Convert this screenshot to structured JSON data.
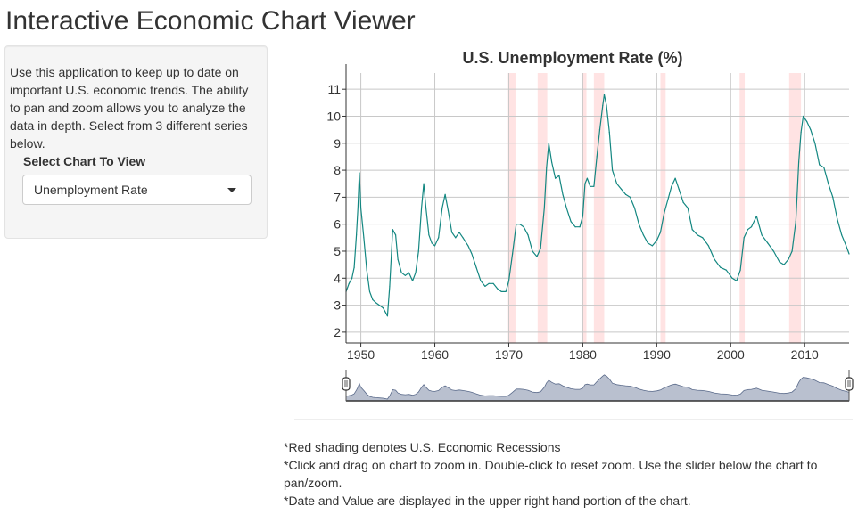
{
  "app": {
    "title": "Interactive Economic Chart Viewer"
  },
  "sidebar": {
    "description": "Use this application to keep up to date on important U.S. economic trends. The ability to pan and zoom allows you to analyze the data in depth. Select from 3 different series below.",
    "select_label": "Select Chart To View",
    "select_value": "Unemployment Rate"
  },
  "notes": [
    "*Red shading denotes U.S. Economic Recessions",
    "*Click and drag on chart to zoom in. Double-click to reset zoom. Use the slider below the chart to pan/zoom.",
    "*Date and Value are displayed in the upper right hand portion of the chart."
  ],
  "colors": {
    "line": "#138781",
    "recession": "#ffe3e3",
    "grid": "#c8c8c8",
    "slider_fill": "#b9c0cf",
    "slider_line": "#5a6a8a"
  },
  "chart_data": {
    "type": "line",
    "title": "U.S. Unemployment Rate (%)",
    "xlabel": "",
    "ylabel": "",
    "xlim": [
      1948,
      2016
    ],
    "ylim": [
      1.6,
      11.6
    ],
    "grid": true,
    "x_ticks": [
      1950,
      1960,
      1970,
      1980,
      1990,
      2000,
      2010
    ],
    "y_ticks": [
      2,
      3,
      4,
      5,
      6,
      7,
      8,
      9,
      10,
      11
    ],
    "recessions": [
      [
        1969.9,
        1970.9
      ],
      [
        1973.9,
        1975.2
      ],
      [
        1980.0,
        1980.5
      ],
      [
        1981.5,
        1982.9
      ],
      [
        1990.5,
        1991.2
      ],
      [
        2001.2,
        2001.9
      ],
      [
        2007.9,
        2009.5
      ]
    ],
    "series": [
      {
        "name": "",
        "x": [
          1948.0,
          1948.4,
          1948.8,
          1949.1,
          1949.4,
          1949.6,
          1949.8,
          1950.0,
          1950.4,
          1950.8,
          1951.2,
          1951.6,
          1952.0,
          1952.5,
          1953.0,
          1953.4,
          1953.6,
          1953.9,
          1954.3,
          1954.7,
          1955.0,
          1955.5,
          1956.0,
          1956.5,
          1957.0,
          1957.4,
          1957.8,
          1958.2,
          1958.5,
          1958.8,
          1959.2,
          1959.6,
          1960.0,
          1960.5,
          1961.0,
          1961.4,
          1961.8,
          1962.3,
          1962.8,
          1963.3,
          1963.8,
          1964.5,
          1965.0,
          1965.6,
          1966.2,
          1966.8,
          1967.3,
          1967.9,
          1968.5,
          1969.0,
          1969.6,
          1970.0,
          1970.5,
          1971.0,
          1971.5,
          1972.0,
          1972.6,
          1973.2,
          1973.8,
          1974.3,
          1974.8,
          1975.1,
          1975.4,
          1975.8,
          1976.3,
          1976.8,
          1977.3,
          1977.8,
          1978.4,
          1979.0,
          1979.6,
          1980.0,
          1980.3,
          1980.6,
          1981.0,
          1981.5,
          1981.9,
          1982.3,
          1982.7,
          1982.9,
          1983.2,
          1983.6,
          1984.0,
          1984.6,
          1985.2,
          1985.8,
          1986.4,
          1987.0,
          1987.6,
          1988.2,
          1988.8,
          1989.4,
          1990.0,
          1990.5,
          1991.0,
          1991.5,
          1992.0,
          1992.5,
          1993.0,
          1993.6,
          1994.2,
          1994.8,
          1995.5,
          1996.2,
          1997.0,
          1997.8,
          1998.6,
          1999.4,
          2000.2,
          2000.8,
          2001.3,
          2001.8,
          2002.3,
          2002.8,
          2003.5,
          2004.2,
          2005.0,
          2005.8,
          2006.6,
          2007.2,
          2007.8,
          2008.3,
          2008.8,
          2009.2,
          2009.5,
          2009.8,
          2010.3,
          2010.8,
          2011.4,
          2012.0,
          2012.6,
          2013.2,
          2013.8,
          2014.4,
          2015.0,
          2015.6,
          2016.0
        ],
        "values": [
          3.5,
          3.8,
          4.0,
          4.4,
          5.6,
          6.6,
          7.9,
          6.6,
          5.5,
          4.3,
          3.5,
          3.2,
          3.1,
          3.0,
          2.9,
          2.7,
          2.6,
          3.7,
          5.8,
          5.6,
          4.7,
          4.2,
          4.1,
          4.2,
          3.9,
          4.2,
          5.0,
          6.6,
          7.5,
          6.6,
          5.6,
          5.3,
          5.2,
          5.5,
          6.6,
          7.1,
          6.5,
          5.7,
          5.5,
          5.7,
          5.5,
          5.2,
          4.9,
          4.4,
          3.9,
          3.7,
          3.8,
          3.8,
          3.6,
          3.5,
          3.5,
          3.9,
          4.9,
          6.0,
          6.0,
          5.9,
          5.6,
          5.0,
          4.8,
          5.1,
          6.6,
          8.1,
          9.0,
          8.3,
          7.7,
          7.8,
          7.1,
          6.6,
          6.1,
          5.9,
          5.9,
          6.3,
          7.5,
          7.7,
          7.4,
          7.4,
          8.5,
          9.5,
          10.4,
          10.8,
          10.4,
          9.4,
          8.0,
          7.5,
          7.3,
          7.1,
          7.0,
          6.6,
          6.0,
          5.6,
          5.3,
          5.2,
          5.4,
          5.7,
          6.4,
          6.9,
          7.4,
          7.7,
          7.3,
          6.8,
          6.6,
          5.8,
          5.6,
          5.5,
          5.2,
          4.7,
          4.4,
          4.3,
          4.0,
          3.9,
          4.3,
          5.5,
          5.8,
          5.9,
          6.3,
          5.6,
          5.3,
          5.0,
          4.6,
          4.5,
          4.7,
          5.0,
          6.1,
          8.3,
          9.4,
          10.0,
          9.8,
          9.5,
          9.0,
          8.2,
          8.1,
          7.5,
          7.0,
          6.2,
          5.6,
          5.2,
          4.9
        ]
      }
    ]
  }
}
